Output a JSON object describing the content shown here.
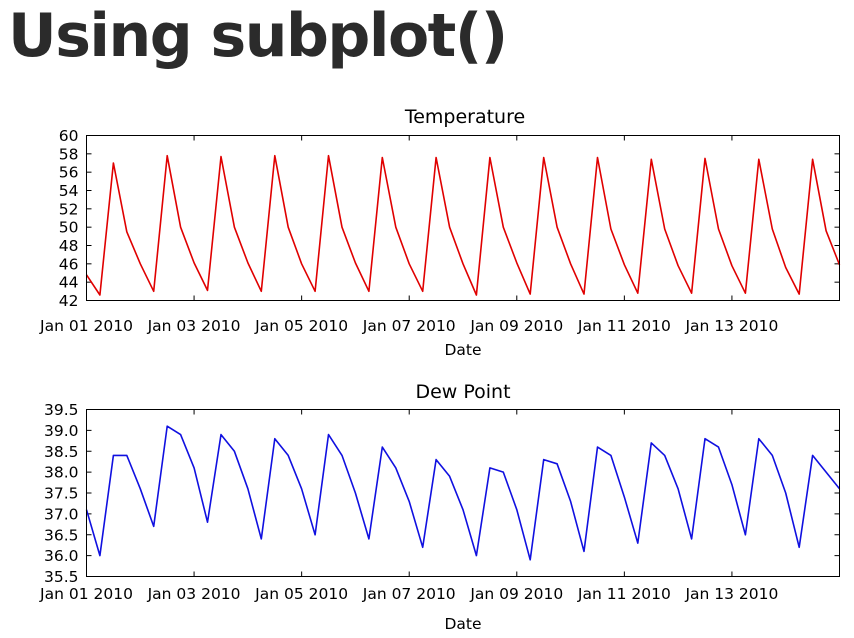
{
  "page": {
    "heading": "Using subplot()"
  },
  "chart_data": [
    {
      "type": "line",
      "title": "Temperature",
      "xlabel": "Date",
      "ylabel": "",
      "xlim": [
        "2010-01-01",
        "2010-01-15"
      ],
      "ylim": [
        42,
        60
      ],
      "yticks": [
        42,
        44,
        46,
        48,
        50,
        52,
        54,
        56,
        58,
        60
      ],
      "ytick_labels": [
        "42",
        "44",
        "46",
        "48",
        "50",
        "52",
        "54",
        "56",
        "58",
        "60"
      ],
      "xtick_labels": [
        "Jan 01 2010",
        "Jan 03 2010",
        "Jan 05 2010",
        "Jan 07 2010",
        "Jan 09 2010",
        "Jan 11 2010",
        "Jan 13 2010"
      ],
      "grid": false,
      "series": [
        {
          "color": "#e00000",
          "x": [
            "2010-01-01 00:00",
            "2010-01-01 06:00",
            "2010-01-01 12:00",
            "2010-01-01 18:00",
            "2010-01-02 00:00",
            "2010-01-02 06:00",
            "2010-01-02 12:00",
            "2010-01-02 18:00",
            "2010-01-03 00:00",
            "2010-01-03 06:00",
            "2010-01-03 12:00",
            "2010-01-03 18:00",
            "2010-01-04 00:00",
            "2010-01-04 06:00",
            "2010-01-04 12:00",
            "2010-01-04 18:00",
            "2010-01-05 00:00",
            "2010-01-05 06:00",
            "2010-01-05 12:00",
            "2010-01-05 18:00",
            "2010-01-06 00:00",
            "2010-01-06 06:00",
            "2010-01-06 12:00",
            "2010-01-06 18:00",
            "2010-01-07 00:00",
            "2010-01-07 06:00",
            "2010-01-07 12:00",
            "2010-01-07 18:00",
            "2010-01-08 00:00",
            "2010-01-08 06:00",
            "2010-01-08 12:00",
            "2010-01-08 18:00",
            "2010-01-09 00:00",
            "2010-01-09 06:00",
            "2010-01-09 12:00",
            "2010-01-09 18:00",
            "2010-01-10 00:00",
            "2010-01-10 06:00",
            "2010-01-10 12:00",
            "2010-01-10 18:00",
            "2010-01-11 00:00",
            "2010-01-11 06:00",
            "2010-01-11 12:00",
            "2010-01-11 18:00",
            "2010-01-12 00:00",
            "2010-01-12 06:00",
            "2010-01-12 12:00",
            "2010-01-12 18:00",
            "2010-01-13 00:00",
            "2010-01-13 06:00",
            "2010-01-13 12:00",
            "2010-01-13 18:00",
            "2010-01-14 00:00",
            "2010-01-14 06:00",
            "2010-01-14 12:00",
            "2010-01-14 18:00",
            "2010-01-15 00:00"
          ],
          "y": [
            44.8,
            42.6,
            57.0,
            49.5,
            46.0,
            43.0,
            57.8,
            50.0,
            46.1,
            43.1,
            57.7,
            50.0,
            46.1,
            43.0,
            57.8,
            50.0,
            46.0,
            43.0,
            57.8,
            50.0,
            46.1,
            43.0,
            57.6,
            50.0,
            46.0,
            43.0,
            57.6,
            50.0,
            46.0,
            42.6,
            57.6,
            50.0,
            46.1,
            42.7,
            57.6,
            50.0,
            46.0,
            42.7,
            57.6,
            49.8,
            45.9,
            42.8,
            57.4,
            49.8,
            45.8,
            42.8,
            57.5,
            49.8,
            45.8,
            42.8,
            57.4,
            49.8,
            45.6,
            42.7,
            57.4,
            49.6,
            45.9
          ]
        }
      ]
    },
    {
      "type": "line",
      "title": "Dew Point",
      "xlabel": "Date",
      "ylabel": "",
      "xlim": [
        "2010-01-01",
        "2010-01-15"
      ],
      "ylim": [
        35.5,
        39.5
      ],
      "yticks": [
        35.5,
        36.0,
        36.5,
        37.0,
        37.5,
        38.0,
        38.5,
        39.0,
        39.5
      ],
      "ytick_labels": [
        "35.5",
        "36.0",
        "36.5",
        "37.0",
        "37.5",
        "38.0",
        "38.5",
        "39.0",
        "39.5"
      ],
      "xtick_labels": [
        "Jan 01 2010",
        "Jan 03 2010",
        "Jan 05 2010",
        "Jan 07 2010",
        "Jan 09 2010",
        "Jan 11 2010",
        "Jan 13 2010"
      ],
      "grid": false,
      "series": [
        {
          "color": "#1010e0",
          "x": [
            "2010-01-01 00:00",
            "2010-01-01 06:00",
            "2010-01-01 12:00",
            "2010-01-01 18:00",
            "2010-01-02 00:00",
            "2010-01-02 06:00",
            "2010-01-02 12:00",
            "2010-01-02 18:00",
            "2010-01-03 00:00",
            "2010-01-03 06:00",
            "2010-01-03 12:00",
            "2010-01-03 18:00",
            "2010-01-04 00:00",
            "2010-01-04 06:00",
            "2010-01-04 12:00",
            "2010-01-04 18:00",
            "2010-01-05 00:00",
            "2010-01-05 06:00",
            "2010-01-05 12:00",
            "2010-01-05 18:00",
            "2010-01-06 00:00",
            "2010-01-06 06:00",
            "2010-01-06 12:00",
            "2010-01-06 18:00",
            "2010-01-07 00:00",
            "2010-01-07 06:00",
            "2010-01-07 12:00",
            "2010-01-07 18:00",
            "2010-01-08 00:00",
            "2010-01-08 06:00",
            "2010-01-08 12:00",
            "2010-01-08 18:00",
            "2010-01-09 00:00",
            "2010-01-09 06:00",
            "2010-01-09 12:00",
            "2010-01-09 18:00",
            "2010-01-10 00:00",
            "2010-01-10 06:00",
            "2010-01-10 12:00",
            "2010-01-10 18:00",
            "2010-01-11 00:00",
            "2010-01-11 06:00",
            "2010-01-11 12:00",
            "2010-01-11 18:00",
            "2010-01-12 00:00",
            "2010-01-12 06:00",
            "2010-01-12 12:00",
            "2010-01-12 18:00",
            "2010-01-13 00:00",
            "2010-01-13 06:00",
            "2010-01-13 12:00",
            "2010-01-13 18:00",
            "2010-01-14 00:00",
            "2010-01-14 06:00",
            "2010-01-14 12:00",
            "2010-01-14 18:00",
            "2010-01-15 00:00"
          ],
          "y": [
            37.1,
            36.0,
            38.4,
            38.4,
            37.6,
            36.7,
            39.1,
            38.9,
            38.1,
            36.8,
            38.9,
            38.5,
            37.6,
            36.4,
            38.8,
            38.4,
            37.6,
            36.5,
            38.9,
            38.4,
            37.5,
            36.4,
            38.6,
            38.1,
            37.3,
            36.2,
            38.3,
            37.9,
            37.1,
            36.0,
            38.1,
            38.0,
            37.1,
            35.9,
            38.3,
            38.2,
            37.3,
            36.1,
            38.6,
            38.4,
            37.4,
            36.3,
            38.7,
            38.4,
            37.6,
            36.4,
            38.8,
            38.6,
            37.7,
            36.5,
            38.8,
            38.4,
            37.5,
            36.2,
            38.4,
            38.0,
            37.6
          ]
        }
      ]
    }
  ]
}
